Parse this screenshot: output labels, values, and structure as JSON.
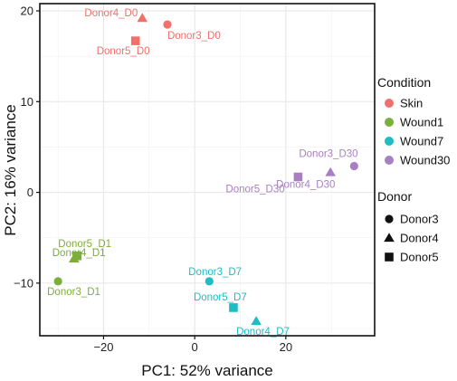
{
  "chart_data": {
    "type": "scatter",
    "xlabel": "PC1: 52% variance",
    "ylabel": "PC2: 16% variance",
    "xlim": [
      -34,
      39.5
    ],
    "ylim": [
      -15.8,
      20.8
    ],
    "xticks": [
      -20,
      0,
      20
    ],
    "yticks": [
      -10,
      0,
      10,
      20
    ],
    "xtick_labels": [
      "−20",
      "0",
      "20"
    ],
    "ytick_labels": [
      "−10",
      "0",
      "10",
      "20"
    ],
    "grid": true,
    "points": [
      {
        "label": "Donor3_D0",
        "condition": "Skin",
        "donor": "Donor3",
        "x": -6.0,
        "y": 18.5
      },
      {
        "label": "Donor4_D0",
        "condition": "Skin",
        "donor": "Donor4",
        "x": -11.5,
        "y": 19.2
      },
      {
        "label": "Donor5_D0",
        "condition": "Skin",
        "donor": "Donor5",
        "x": -13.0,
        "y": 16.7
      },
      {
        "label": "Donor3_D1",
        "condition": "Wound1",
        "donor": "Donor3",
        "x": -30.0,
        "y": -9.8
      },
      {
        "label": "Donor4_D1",
        "condition": "Wound1",
        "donor": "Donor4",
        "x": -26.5,
        "y": -7.3
      },
      {
        "label": "Donor5_D1",
        "condition": "Wound1",
        "donor": "Donor5",
        "x": -25.8,
        "y": -7.0
      },
      {
        "label": "Donor3_D7",
        "condition": "Wound7",
        "donor": "Donor3",
        "x": 3.2,
        "y": -9.8
      },
      {
        "label": "Donor4_D7",
        "condition": "Wound7",
        "donor": "Donor4",
        "x": 13.5,
        "y": -14.2
      },
      {
        "label": "Donor5_D7",
        "condition": "Wound7",
        "donor": "Donor5",
        "x": 8.5,
        "y": -12.7
      },
      {
        "label": "Donor3_D30",
        "condition": "Wound30",
        "donor": "Donor3",
        "x": 35.0,
        "y": 2.9
      },
      {
        "label": "Donor4_D30",
        "condition": "Wound30",
        "donor": "Donor4",
        "x": 29.8,
        "y": 2.2
      },
      {
        "label": "Donor5_D30",
        "condition": "Wound30",
        "donor": "Donor5",
        "x": 22.7,
        "y": 1.7
      }
    ],
    "legend_placement": "right",
    "legend": {
      "condition_title": "Condition",
      "conditions": [
        {
          "name": "Skin",
          "color": "#F0706A"
        },
        {
          "name": "Wound1",
          "color": "#7CAE3A"
        },
        {
          "name": "Wound7",
          "color": "#1DBDC2"
        },
        {
          "name": "Wound30",
          "color": "#A97FC4"
        }
      ],
      "donor_title": "Donor",
      "donors": [
        {
          "name": "Donor3",
          "shape": "circle"
        },
        {
          "name": "Donor4",
          "shape": "triangle"
        },
        {
          "name": "Donor5",
          "shape": "square"
        }
      ]
    }
  }
}
